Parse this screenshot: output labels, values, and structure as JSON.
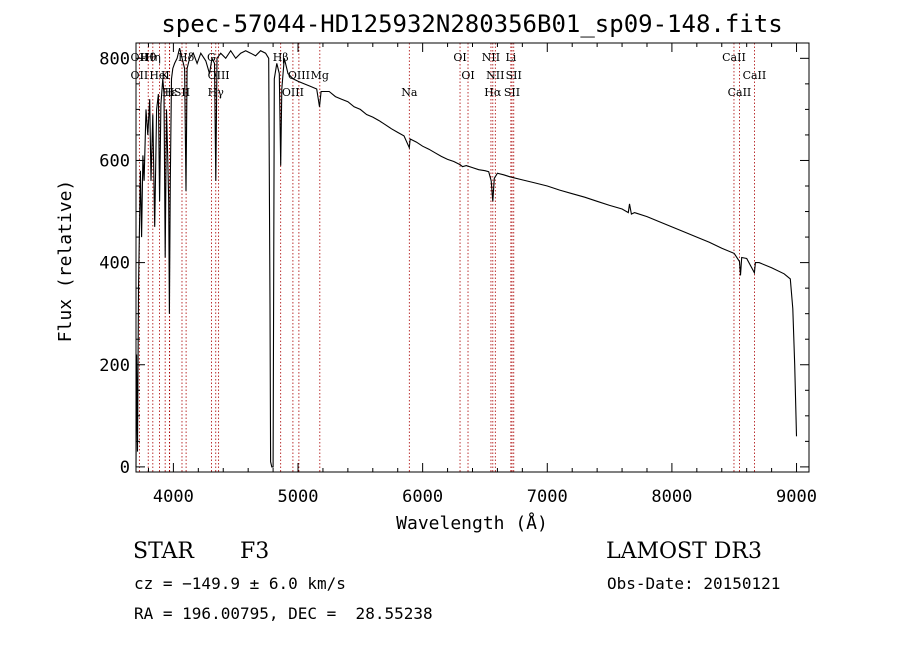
{
  "chart_data": {
    "type": "line",
    "title": "spec-57044-HD125932N280356B01_sp09-148.fits",
    "xlabel": "Wavelength (Å)",
    "ylabel": "Flux (relative)",
    "xlim": [
      3700,
      9100
    ],
    "ylim": [
      -10,
      830
    ],
    "x_ticks": [
      4000,
      5000,
      6000,
      7000,
      8000,
      9000
    ],
    "y_ticks": [
      0,
      200,
      400,
      600,
      800
    ],
    "grid": false,
    "series": [
      {
        "name": "flux",
        "points": [
          [
            3700,
            0
          ],
          [
            3705,
            220
          ],
          [
            3712,
            30
          ],
          [
            3720,
            350
          ],
          [
            3735,
            580
          ],
          [
            3745,
            450
          ],
          [
            3755,
            610
          ],
          [
            3765,
            560
          ],
          [
            3780,
            700
          ],
          [
            3795,
            650
          ],
          [
            3810,
            720
          ],
          [
            3820,
            560
          ],
          [
            3835,
            690
          ],
          [
            3850,
            470
          ],
          [
            3865,
            700
          ],
          [
            3880,
            730
          ],
          [
            3889,
            520
          ],
          [
            3900,
            710
          ],
          [
            3915,
            760
          ],
          [
            3925,
            730
          ],
          [
            3934,
            410
          ],
          [
            3945,
            700
          ],
          [
            3955,
            600
          ],
          [
            3962,
            520
          ],
          [
            3968,
            300
          ],
          [
            3975,
            560
          ],
          [
            3985,
            760
          ],
          [
            3995,
            780
          ],
          [
            4010,
            790
          ],
          [
            4030,
            800
          ],
          [
            4050,
            820
          ],
          [
            4070,
            800
          ],
          [
            4090,
            780
          ],
          [
            4101,
            540
          ],
          [
            4110,
            780
          ],
          [
            4130,
            800
          ],
          [
            4160,
            810
          ],
          [
            4190,
            790
          ],
          [
            4220,
            810
          ],
          [
            4260,
            795
          ],
          [
            4290,
            770
          ],
          [
            4310,
            800
          ],
          [
            4330,
            790
          ],
          [
            4340,
            560
          ],
          [
            4350,
            800
          ],
          [
            4380,
            810
          ],
          [
            4420,
            800
          ],
          [
            4460,
            815
          ],
          [
            4500,
            800
          ],
          [
            4540,
            810
          ],
          [
            4580,
            815
          ],
          [
            4620,
            810
          ],
          [
            4660,
            805
          ],
          [
            4700,
            815
          ],
          [
            4740,
            810
          ],
          [
            4765,
            800
          ],
          [
            4775,
            320
          ],
          [
            4780,
            10
          ],
          [
            4790,
            0
          ],
          [
            4800,
            0
          ],
          [
            4810,
            760
          ],
          [
            4830,
            790
          ],
          [
            4850,
            770
          ],
          [
            4861,
            590
          ],
          [
            4870,
            740
          ],
          [
            4890,
            800
          ],
          [
            4920,
            770
          ],
          [
            4960,
            760
          ],
          [
            5000,
            755
          ],
          [
            5050,
            750
          ],
          [
            5100,
            745
          ],
          [
            5150,
            740
          ],
          [
            5172,
            705
          ],
          [
            5185,
            735
          ],
          [
            5250,
            735
          ],
          [
            5300,
            725
          ],
          [
            5350,
            720
          ],
          [
            5400,
            715
          ],
          [
            5450,
            705
          ],
          [
            5500,
            700
          ],
          [
            5550,
            690
          ],
          [
            5600,
            685
          ],
          [
            5650,
            678
          ],
          [
            5700,
            670
          ],
          [
            5750,
            662
          ],
          [
            5800,
            655
          ],
          [
            5850,
            648
          ],
          [
            5893,
            625
          ],
          [
            5900,
            642
          ],
          [
            5950,
            636
          ],
          [
            6000,
            628
          ],
          [
            6050,
            622
          ],
          [
            6100,
            615
          ],
          [
            6150,
            608
          ],
          [
            6200,
            602
          ],
          [
            6250,
            598
          ],
          [
            6300,
            592
          ],
          [
            6320,
            588
          ],
          [
            6350,
            590
          ],
          [
            6400,
            586
          ],
          [
            6450,
            582
          ],
          [
            6500,
            580
          ],
          [
            6530,
            578
          ],
          [
            6550,
            560
          ],
          [
            6563,
            520
          ],
          [
            6575,
            565
          ],
          [
            6600,
            575
          ],
          [
            6650,
            572
          ],
          [
            6700,
            568
          ],
          [
            6800,
            562
          ],
          [
            6900,
            556
          ],
          [
            7000,
            550
          ],
          [
            7100,
            542
          ],
          [
            7200,
            535
          ],
          [
            7300,
            528
          ],
          [
            7400,
            520
          ],
          [
            7500,
            512
          ],
          [
            7600,
            505
          ],
          [
            7650,
            498
          ],
          [
            7660,
            515
          ],
          [
            7675,
            495
          ],
          [
            7700,
            498
          ],
          [
            7800,
            490
          ],
          [
            7900,
            480
          ],
          [
            8000,
            470
          ],
          [
            8100,
            460
          ],
          [
            8200,
            450
          ],
          [
            8300,
            440
          ],
          [
            8400,
            428
          ],
          [
            8500,
            418
          ],
          [
            8542,
            402
          ],
          [
            8550,
            375
          ],
          [
            8560,
            410
          ],
          [
            8600,
            408
          ],
          [
            8662,
            380
          ],
          [
            8670,
            400
          ],
          [
            8700,
            400
          ],
          [
            8800,
            390
          ],
          [
            8900,
            378
          ],
          [
            8950,
            368
          ],
          [
            8970,
            310
          ],
          [
            8985,
            200
          ],
          [
            9000,
            60
          ]
        ]
      }
    ],
    "line_markers": [
      {
        "label": "Hθ",
        "wavelength": 3798
      },
      {
        "label": "K",
        "wavelength": 3934
      },
      {
        "label": "H",
        "wavelength": 3968
      },
      {
        "label": "OII",
        "wavelength": 3727
      },
      {
        "label": "HeI",
        "wavelength": 3889
      },
      {
        "label": "SII",
        "wavelength": 4069
      },
      {
        "label": "Hδ",
        "wavelength": 4102
      },
      {
        "label": "OII",
        "wavelength": 3727
      },
      {
        "label": "Hε",
        "wavelength": 3970
      },
      {
        "label": "Hη",
        "wavelength": 3835
      },
      {
        "label": "OIII",
        "wavelength": 4363
      },
      {
        "label": "Hγ",
        "wavelength": 4340
      },
      {
        "label": "G",
        "wavelength": 4305
      },
      {
        "label": "OIII",
        "wavelength": 5007
      },
      {
        "label": "OIII",
        "wavelength": 4959
      },
      {
        "label": "Hβ",
        "wavelength": 4861
      },
      {
        "label": "Mg",
        "wavelength": 5175
      },
      {
        "label": "Na",
        "wavelength": 5893
      },
      {
        "label": "OI",
        "wavelength": 6300
      },
      {
        "label": "OI",
        "wavelength": 6364
      },
      {
        "label": "Hα",
        "wavelength": 6563
      },
      {
        "label": "NII",
        "wavelength": 6548
      },
      {
        "label": "NII",
        "wavelength": 6583
      },
      {
        "label": "SII",
        "wavelength": 6717
      },
      {
        "label": "Li",
        "wavelength": 6708
      },
      {
        "label": "SII",
        "wavelength": 6731
      },
      {
        "label": "CaII",
        "wavelength": 8542
      },
      {
        "label": "CaII",
        "wavelength": 8498
      },
      {
        "label": "CaII",
        "wavelength": 8662
      }
    ]
  },
  "info": {
    "object_class": "STAR",
    "subclass": "F3",
    "survey": "LAMOST DR3",
    "redshift": "cz = −149.9 ± 6.0 km/s",
    "obs_date": "Obs-Date: 20150121",
    "coords": "RA = 196.00795, DEC =  28.55238"
  },
  "colors": {
    "spectrum": "#000000",
    "marker_line": "#aa0000",
    "axes": "#000000"
  }
}
